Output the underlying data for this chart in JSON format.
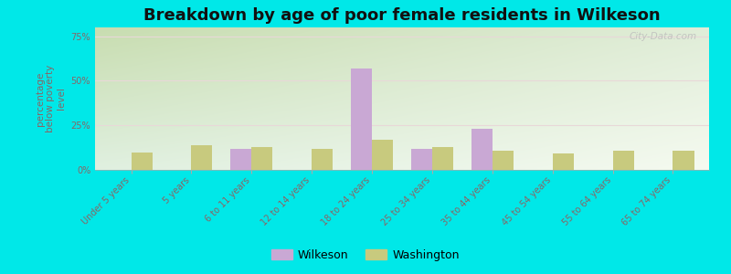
{
  "title": "Breakdown by age of poor female residents in Wilkeson",
  "categories": [
    "Under 5 years",
    "5 years",
    "6 to 11 years",
    "12 to 14 years",
    "18 to 24 years",
    "25 to 34 years",
    "35 to 44 years",
    "45 to 54 years",
    "55 to 64 years",
    "65 to 74 years"
  ],
  "wilkeson": [
    0,
    0,
    12,
    0,
    57,
    12,
    23,
    0,
    0,
    0
  ],
  "washington": [
    10,
    14,
    13,
    12,
    17,
    13,
    11,
    9,
    11,
    11
  ],
  "wilkeson_color": "#c9a8d4",
  "washington_color": "#c8ca7e",
  "bar_width": 0.35,
  "ylim": [
    0,
    80
  ],
  "yticks": [
    0,
    25,
    50,
    75
  ],
  "ytick_labels": [
    "0%",
    "25%",
    "50%",
    "75%"
  ],
  "ylabel": "percentage\nbelow poverty\nlevel",
  "bg_top_left": "#c8ddb0",
  "bg_bottom_right": "#f0f8e8",
  "outer_color": "#00e8e8",
  "title_fontsize": 13,
  "axis_label_fontsize": 7.5,
  "tick_fontsize": 7,
  "legend_fontsize": 9,
  "watermark": "City-Data.com",
  "grid_color": "#e8d8d8",
  "ylabel_color": "#886666",
  "tick_color": "#886666"
}
